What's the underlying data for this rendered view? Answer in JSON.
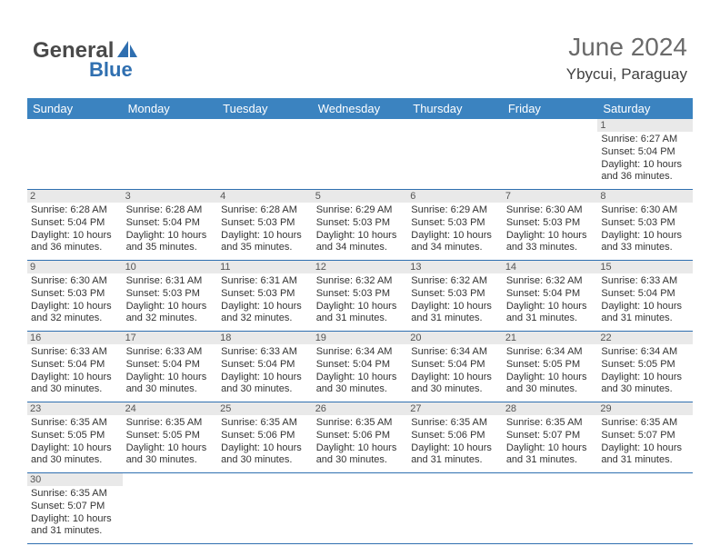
{
  "logo": {
    "text1": "General",
    "text2": "Blue"
  },
  "header": {
    "title": "June 2024",
    "location": "Ybycui, Paraguay"
  },
  "colors": {
    "header_bg": "#3b83c0",
    "header_text": "#ffffff",
    "row_divider": "#2f6fb0",
    "daynum_bg": "#e9e9e9",
    "logo_gray": "#4a4a4a",
    "logo_blue": "#2f6fb0"
  },
  "weekday_headers": [
    "Sunday",
    "Monday",
    "Tuesday",
    "Wednesday",
    "Thursday",
    "Friday",
    "Saturday"
  ],
  "weeks": [
    [
      null,
      null,
      null,
      null,
      null,
      null,
      {
        "day": "1",
        "sunrise": "Sunrise: 6:27 AM",
        "sunset": "Sunset: 5:04 PM",
        "daylight1": "Daylight: 10 hours",
        "daylight2": "and 36 minutes."
      }
    ],
    [
      {
        "day": "2",
        "sunrise": "Sunrise: 6:28 AM",
        "sunset": "Sunset: 5:04 PM",
        "daylight1": "Daylight: 10 hours",
        "daylight2": "and 36 minutes."
      },
      {
        "day": "3",
        "sunrise": "Sunrise: 6:28 AM",
        "sunset": "Sunset: 5:04 PM",
        "daylight1": "Daylight: 10 hours",
        "daylight2": "and 35 minutes."
      },
      {
        "day": "4",
        "sunrise": "Sunrise: 6:28 AM",
        "sunset": "Sunset: 5:03 PM",
        "daylight1": "Daylight: 10 hours",
        "daylight2": "and 35 minutes."
      },
      {
        "day": "5",
        "sunrise": "Sunrise: 6:29 AM",
        "sunset": "Sunset: 5:03 PM",
        "daylight1": "Daylight: 10 hours",
        "daylight2": "and 34 minutes."
      },
      {
        "day": "6",
        "sunrise": "Sunrise: 6:29 AM",
        "sunset": "Sunset: 5:03 PM",
        "daylight1": "Daylight: 10 hours",
        "daylight2": "and 34 minutes."
      },
      {
        "day": "7",
        "sunrise": "Sunrise: 6:30 AM",
        "sunset": "Sunset: 5:03 PM",
        "daylight1": "Daylight: 10 hours",
        "daylight2": "and 33 minutes."
      },
      {
        "day": "8",
        "sunrise": "Sunrise: 6:30 AM",
        "sunset": "Sunset: 5:03 PM",
        "daylight1": "Daylight: 10 hours",
        "daylight2": "and 33 minutes."
      }
    ],
    [
      {
        "day": "9",
        "sunrise": "Sunrise: 6:30 AM",
        "sunset": "Sunset: 5:03 PM",
        "daylight1": "Daylight: 10 hours",
        "daylight2": "and 32 minutes."
      },
      {
        "day": "10",
        "sunrise": "Sunrise: 6:31 AM",
        "sunset": "Sunset: 5:03 PM",
        "daylight1": "Daylight: 10 hours",
        "daylight2": "and 32 minutes."
      },
      {
        "day": "11",
        "sunrise": "Sunrise: 6:31 AM",
        "sunset": "Sunset: 5:03 PM",
        "daylight1": "Daylight: 10 hours",
        "daylight2": "and 32 minutes."
      },
      {
        "day": "12",
        "sunrise": "Sunrise: 6:32 AM",
        "sunset": "Sunset: 5:03 PM",
        "daylight1": "Daylight: 10 hours",
        "daylight2": "and 31 minutes."
      },
      {
        "day": "13",
        "sunrise": "Sunrise: 6:32 AM",
        "sunset": "Sunset: 5:03 PM",
        "daylight1": "Daylight: 10 hours",
        "daylight2": "and 31 minutes."
      },
      {
        "day": "14",
        "sunrise": "Sunrise: 6:32 AM",
        "sunset": "Sunset: 5:04 PM",
        "daylight1": "Daylight: 10 hours",
        "daylight2": "and 31 minutes."
      },
      {
        "day": "15",
        "sunrise": "Sunrise: 6:33 AM",
        "sunset": "Sunset: 5:04 PM",
        "daylight1": "Daylight: 10 hours",
        "daylight2": "and 31 minutes."
      }
    ],
    [
      {
        "day": "16",
        "sunrise": "Sunrise: 6:33 AM",
        "sunset": "Sunset: 5:04 PM",
        "daylight1": "Daylight: 10 hours",
        "daylight2": "and 30 minutes."
      },
      {
        "day": "17",
        "sunrise": "Sunrise: 6:33 AM",
        "sunset": "Sunset: 5:04 PM",
        "daylight1": "Daylight: 10 hours",
        "daylight2": "and 30 minutes."
      },
      {
        "day": "18",
        "sunrise": "Sunrise: 6:33 AM",
        "sunset": "Sunset: 5:04 PM",
        "daylight1": "Daylight: 10 hours",
        "daylight2": "and 30 minutes."
      },
      {
        "day": "19",
        "sunrise": "Sunrise: 6:34 AM",
        "sunset": "Sunset: 5:04 PM",
        "daylight1": "Daylight: 10 hours",
        "daylight2": "and 30 minutes."
      },
      {
        "day": "20",
        "sunrise": "Sunrise: 6:34 AM",
        "sunset": "Sunset: 5:04 PM",
        "daylight1": "Daylight: 10 hours",
        "daylight2": "and 30 minutes."
      },
      {
        "day": "21",
        "sunrise": "Sunrise: 6:34 AM",
        "sunset": "Sunset: 5:05 PM",
        "daylight1": "Daylight: 10 hours",
        "daylight2": "and 30 minutes."
      },
      {
        "day": "22",
        "sunrise": "Sunrise: 6:34 AM",
        "sunset": "Sunset: 5:05 PM",
        "daylight1": "Daylight: 10 hours",
        "daylight2": "and 30 minutes."
      }
    ],
    [
      {
        "day": "23",
        "sunrise": "Sunrise: 6:35 AM",
        "sunset": "Sunset: 5:05 PM",
        "daylight1": "Daylight: 10 hours",
        "daylight2": "and 30 minutes."
      },
      {
        "day": "24",
        "sunrise": "Sunrise: 6:35 AM",
        "sunset": "Sunset: 5:05 PM",
        "daylight1": "Daylight: 10 hours",
        "daylight2": "and 30 minutes."
      },
      {
        "day": "25",
        "sunrise": "Sunrise: 6:35 AM",
        "sunset": "Sunset: 5:06 PM",
        "daylight1": "Daylight: 10 hours",
        "daylight2": "and 30 minutes."
      },
      {
        "day": "26",
        "sunrise": "Sunrise: 6:35 AM",
        "sunset": "Sunset: 5:06 PM",
        "daylight1": "Daylight: 10 hours",
        "daylight2": "and 30 minutes."
      },
      {
        "day": "27",
        "sunrise": "Sunrise: 6:35 AM",
        "sunset": "Sunset: 5:06 PM",
        "daylight1": "Daylight: 10 hours",
        "daylight2": "and 31 minutes."
      },
      {
        "day": "28",
        "sunrise": "Sunrise: 6:35 AM",
        "sunset": "Sunset: 5:07 PM",
        "daylight1": "Daylight: 10 hours",
        "daylight2": "and 31 minutes."
      },
      {
        "day": "29",
        "sunrise": "Sunrise: 6:35 AM",
        "sunset": "Sunset: 5:07 PM",
        "daylight1": "Daylight: 10 hours",
        "daylight2": "and 31 minutes."
      }
    ],
    [
      {
        "day": "30",
        "sunrise": "Sunrise: 6:35 AM",
        "sunset": "Sunset: 5:07 PM",
        "daylight1": "Daylight: 10 hours",
        "daylight2": "and 31 minutes."
      },
      null,
      null,
      null,
      null,
      null,
      null
    ]
  ]
}
